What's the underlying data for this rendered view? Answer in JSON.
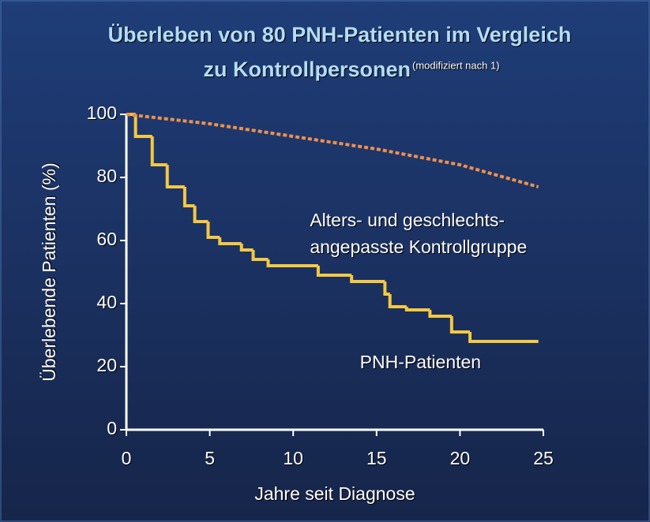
{
  "chart_data": {
    "type": "step",
    "title_lines": [
      "Überleben von 80 PNH-Patienten im Vergleich",
      "zu Kontrollpersonen"
    ],
    "title_note": "(modifiziert nach 1)",
    "x_label": "Jahre seit Diagnose",
    "y_label": "Überlebende Patienten (%)",
    "xlim": [
      0,
      25
    ],
    "ylim": [
      0,
      100
    ],
    "xticks": [
      0,
      5,
      10,
      15,
      20,
      25
    ],
    "yticks": [
      0,
      20,
      40,
      60,
      80,
      100
    ],
    "series": [
      {
        "color": "#f5c842",
        "style": "solid",
        "x": [
          0,
          0.55,
          1.55,
          2.45,
          3.5,
          4.1,
          4.9,
          5.6,
          6.9,
          7.6,
          8.5,
          11.5,
          13.5,
          15.5,
          15.8,
          16.8,
          18.2,
          19.5,
          20.6,
          24.7
        ],
        "values": [
          100,
          93,
          84,
          77,
          71,
          66,
          61,
          59,
          57,
          54,
          52,
          49,
          47,
          43,
          39,
          38,
          36,
          31,
          28,
          28
        ]
      },
      {
        "color": "#f0904a",
        "style": "dashed",
        "x": [
          0,
          5,
          10,
          15,
          20,
          24.7
        ],
        "values": [
          100,
          97,
          93,
          89,
          84,
          77
        ]
      }
    ],
    "annotations": [
      {
        "lines": [
          "Alters- und geschlechts-",
          "angepasste Kontrollgruppe"
        ],
        "x": 11,
        "y": 66
      },
      {
        "lines": [
          "PNH-Patienten"
        ],
        "x": 14,
        "y": 21
      }
    ]
  }
}
